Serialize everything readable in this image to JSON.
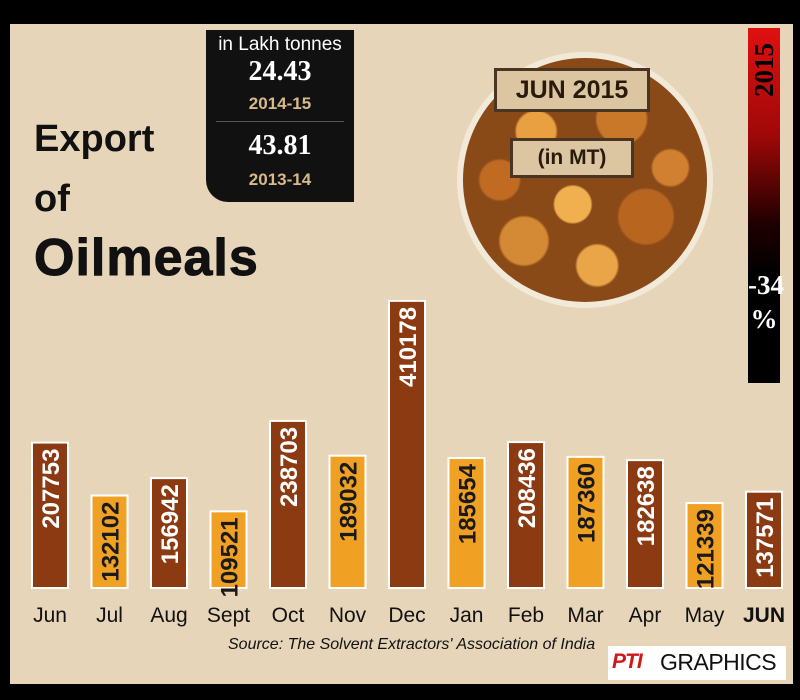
{
  "title": {
    "line1": "Export",
    "line2": "of",
    "line3": "Oilmeals"
  },
  "stats": {
    "unit": "in Lakh tonnes",
    "items": [
      {
        "value": "24.43",
        "year": "2014-15"
      },
      {
        "value": "43.81",
        "year": "2013-14"
      }
    ]
  },
  "inset": {
    "label1": "JUN 2015",
    "label2": "(in MT)"
  },
  "side": {
    "year": "2015",
    "change": "-34\n%"
  },
  "source": "Source: The Solvent Extractors' Association of India",
  "credit": {
    "logo": "PTI",
    "text": "GRAPHICS"
  },
  "colors": {
    "dark_bar": "#8b3a12",
    "light_bar": "#f0a123",
    "background": "#e6d5b8"
  },
  "chart_data": {
    "type": "bar",
    "categories": [
      "Jun",
      "Jul",
      "Aug",
      "Sept",
      "Oct",
      "Nov",
      "Dec",
      "Jan",
      "Feb",
      "Mar",
      "Apr",
      "May",
      "JUN"
    ],
    "values": [
      207753,
      132102,
      156942,
      109521,
      238703,
      189032,
      410178,
      185654,
      208436,
      187360,
      182638,
      121339,
      137571
    ],
    "bar_colors": [
      "dark",
      "light",
      "dark",
      "light",
      "dark",
      "light",
      "dark",
      "light",
      "dark",
      "light",
      "dark",
      "light",
      "dark"
    ],
    "highlight_last_category": true,
    "title": "Export of Oilmeals",
    "unit": "in MT"
  }
}
